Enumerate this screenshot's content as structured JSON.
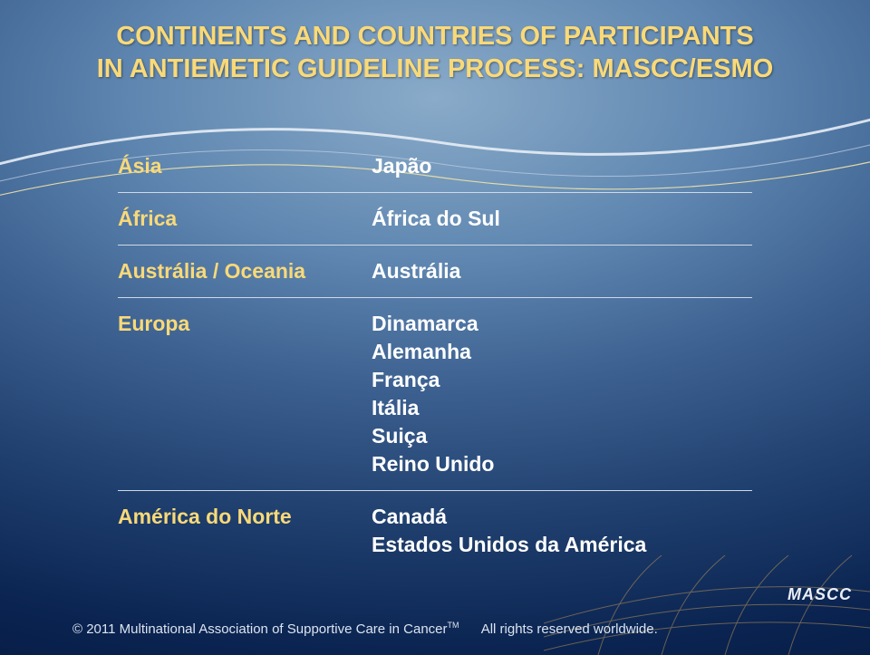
{
  "title": {
    "line1": "CONTINENTS AND COUNTRIES OF PARTICIPANTS",
    "line2": "IN ANTIEMETIC GUIDELINE PROCESS: MASCC/ESMO"
  },
  "rows": [
    {
      "left": "Ásia",
      "right": "Japão"
    },
    {
      "left": "África",
      "right": "África do Sul"
    },
    {
      "left": "Austrália / Oceania",
      "right": "Austrália"
    },
    {
      "left": "Europa",
      "right": "Dinamarca\nAlemanha\nFrança\nItália\nSuiça\nReino Unido"
    },
    {
      "left": "América do Norte",
      "right": "Canadá\nEstados Unidos da América"
    }
  ],
  "footer": {
    "copyright": "© 2011 Multinational Association of Supportive Care in Cancer",
    "tm": "TM",
    "rights": "All rights reserved worldwide."
  },
  "logo": {
    "text": "MASCC"
  },
  "colors": {
    "title": "#f9d978",
    "leftCol": "#f9d978",
    "rightCol": "#ffffff",
    "footer": "#dbe4f0",
    "divider": "#cfd9e6"
  }
}
